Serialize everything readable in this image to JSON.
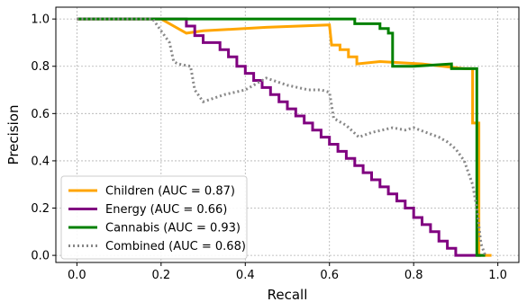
{
  "chart_data": {
    "type": "line",
    "xlabel": "Recall",
    "ylabel": "Precision",
    "xlim": [
      -0.05,
      1.05
    ],
    "ylim": [
      -0.03,
      1.05
    ],
    "xticks": [
      0.0,
      0.2,
      0.4,
      0.6,
      0.8,
      1.0
    ],
    "xtick_labels": [
      "0.0",
      "0.2",
      "0.4",
      "0.6",
      "0.8",
      "1.0"
    ],
    "yticks": [
      0.0,
      0.2,
      0.4,
      0.6,
      0.8,
      1.0
    ],
    "ytick_labels": [
      "0.0",
      "0.2",
      "0.4",
      "0.6",
      "0.8",
      "1.0"
    ],
    "grid": true,
    "legend_position": "lower-left",
    "series": [
      {
        "name": "Children (AUC = 0.87)",
        "color": "#FFA500",
        "style": "solid",
        "points": [
          [
            0.0,
            1.0
          ],
          [
            0.2,
            1.0
          ],
          [
            0.26,
            0.94
          ],
          [
            0.3,
            0.95
          ],
          [
            0.45,
            0.965
          ],
          [
            0.6,
            0.975
          ],
          [
            0.605,
            0.89
          ],
          [
            0.625,
            0.89
          ],
          [
            0.625,
            0.87
          ],
          [
            0.645,
            0.87
          ],
          [
            0.645,
            0.84
          ],
          [
            0.665,
            0.84
          ],
          [
            0.665,
            0.81
          ],
          [
            0.72,
            0.82
          ],
          [
            0.82,
            0.81
          ],
          [
            0.92,
            0.79
          ],
          [
            0.94,
            0.79
          ],
          [
            0.94,
            0.56
          ],
          [
            0.955,
            0.56
          ],
          [
            0.955,
            0.0
          ],
          [
            0.985,
            0.0
          ]
        ]
      },
      {
        "name": "Energy (AUC = 0.66)",
        "color": "#800080",
        "style": "solid",
        "points": [
          [
            0.0,
            1.0
          ],
          [
            0.26,
            1.0
          ],
          [
            0.26,
            0.97
          ],
          [
            0.28,
            0.97
          ],
          [
            0.28,
            0.93
          ],
          [
            0.3,
            0.93
          ],
          [
            0.3,
            0.9
          ],
          [
            0.34,
            0.9
          ],
          [
            0.34,
            0.87
          ],
          [
            0.36,
            0.87
          ],
          [
            0.36,
            0.84
          ],
          [
            0.38,
            0.84
          ],
          [
            0.38,
            0.8
          ],
          [
            0.4,
            0.8
          ],
          [
            0.4,
            0.77
          ],
          [
            0.42,
            0.77
          ],
          [
            0.42,
            0.74
          ],
          [
            0.44,
            0.74
          ],
          [
            0.44,
            0.71
          ],
          [
            0.46,
            0.71
          ],
          [
            0.46,
            0.68
          ],
          [
            0.48,
            0.68
          ],
          [
            0.48,
            0.65
          ],
          [
            0.5,
            0.65
          ],
          [
            0.5,
            0.62
          ],
          [
            0.52,
            0.62
          ],
          [
            0.52,
            0.59
          ],
          [
            0.54,
            0.59
          ],
          [
            0.54,
            0.56
          ],
          [
            0.56,
            0.56
          ],
          [
            0.56,
            0.53
          ],
          [
            0.58,
            0.53
          ],
          [
            0.58,
            0.5
          ],
          [
            0.6,
            0.5
          ],
          [
            0.6,
            0.47
          ],
          [
            0.62,
            0.47
          ],
          [
            0.62,
            0.44
          ],
          [
            0.64,
            0.44
          ],
          [
            0.64,
            0.41
          ],
          [
            0.66,
            0.41
          ],
          [
            0.66,
            0.38
          ],
          [
            0.68,
            0.38
          ],
          [
            0.68,
            0.35
          ],
          [
            0.7,
            0.35
          ],
          [
            0.7,
            0.32
          ],
          [
            0.72,
            0.32
          ],
          [
            0.72,
            0.29
          ],
          [
            0.74,
            0.29
          ],
          [
            0.74,
            0.26
          ],
          [
            0.76,
            0.26
          ],
          [
            0.76,
            0.23
          ],
          [
            0.78,
            0.23
          ],
          [
            0.78,
            0.2
          ],
          [
            0.8,
            0.2
          ],
          [
            0.8,
            0.16
          ],
          [
            0.82,
            0.16
          ],
          [
            0.82,
            0.13
          ],
          [
            0.84,
            0.13
          ],
          [
            0.84,
            0.1
          ],
          [
            0.86,
            0.1
          ],
          [
            0.86,
            0.06
          ],
          [
            0.88,
            0.06
          ],
          [
            0.88,
            0.03
          ],
          [
            0.9,
            0.03
          ],
          [
            0.9,
            0.0
          ],
          [
            0.96,
            0.0
          ]
        ]
      },
      {
        "name": "Cannabis (AUC = 0.93)",
        "color": "#008000",
        "style": "solid",
        "points": [
          [
            0.0,
            1.0
          ],
          [
            0.66,
            1.0
          ],
          [
            0.66,
            0.98
          ],
          [
            0.72,
            0.98
          ],
          [
            0.72,
            0.96
          ],
          [
            0.74,
            0.96
          ],
          [
            0.74,
            0.94
          ],
          [
            0.75,
            0.94
          ],
          [
            0.75,
            0.8
          ],
          [
            0.8,
            0.8
          ],
          [
            0.89,
            0.81
          ],
          [
            0.89,
            0.79
          ],
          [
            0.95,
            0.79
          ],
          [
            0.95,
            0.0
          ],
          [
            0.97,
            0.0
          ],
          [
            0.97,
            0.0
          ]
        ]
      },
      {
        "name": "Combined (AUC = 0.68)",
        "color": "#888888",
        "style": "dotted",
        "points": [
          [
            0.0,
            1.0
          ],
          [
            0.18,
            1.0
          ],
          [
            0.2,
            0.95
          ],
          [
            0.22,
            0.9
          ],
          [
            0.23,
            0.82
          ],
          [
            0.24,
            0.81
          ],
          [
            0.27,
            0.8
          ],
          [
            0.28,
            0.7
          ],
          [
            0.3,
            0.65
          ],
          [
            0.35,
            0.68
          ],
          [
            0.4,
            0.7
          ],
          [
            0.45,
            0.75
          ],
          [
            0.5,
            0.72
          ],
          [
            0.55,
            0.7
          ],
          [
            0.58,
            0.7
          ],
          [
            0.6,
            0.69
          ],
          [
            0.61,
            0.58
          ],
          [
            0.64,
            0.55
          ],
          [
            0.67,
            0.5
          ],
          [
            0.7,
            0.52
          ],
          [
            0.75,
            0.54
          ],
          [
            0.78,
            0.53
          ],
          [
            0.8,
            0.54
          ],
          [
            0.83,
            0.52
          ],
          [
            0.86,
            0.5
          ],
          [
            0.88,
            0.48
          ],
          [
            0.9,
            0.45
          ],
          [
            0.92,
            0.4
          ],
          [
            0.94,
            0.3
          ],
          [
            0.95,
            0.2
          ],
          [
            0.96,
            0.05
          ],
          [
            0.97,
            0.0
          ]
        ]
      }
    ]
  }
}
